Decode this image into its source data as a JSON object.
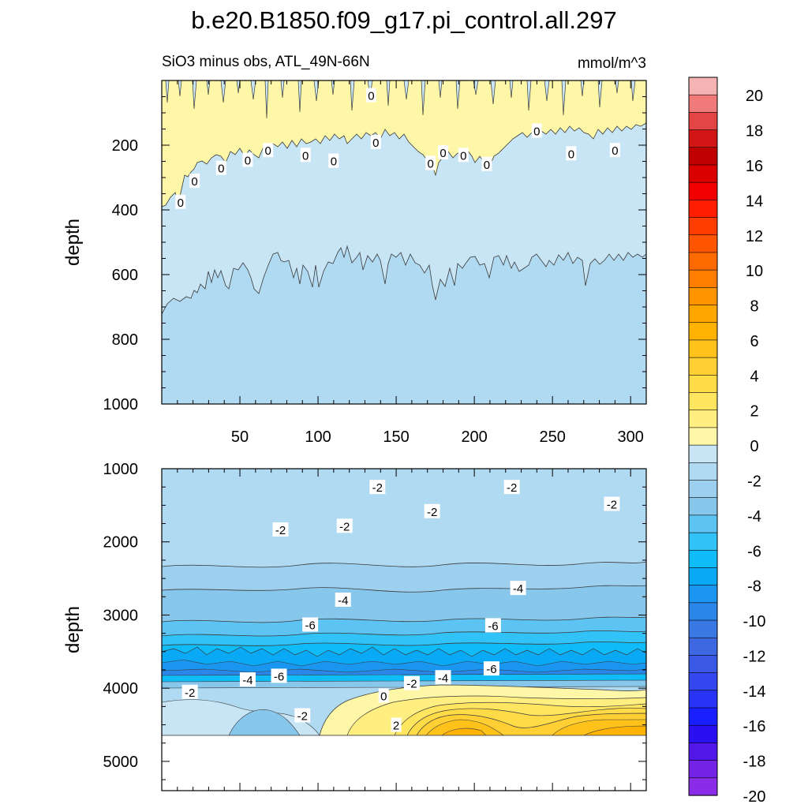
{
  "title": "b.e20.B1850.f09_g17.pi_control.all.297",
  "subtitle_left": "SiO3 minus obs, ATL_49N-66N",
  "subtitle_right": "mmol/m^3",
  "chart_data": [
    {
      "type": "contour",
      "panel": "upper",
      "ylabel": "depth",
      "xlim": [
        0,
        310
      ],
      "ylim": [
        0,
        1000
      ],
      "y_reversed": true,
      "x_ticks": [
        50,
        100,
        150,
        200,
        250,
        300
      ],
      "y_ticks": [
        200,
        400,
        600,
        800,
        1000
      ],
      "contour_labels": [
        {
          "x": 134,
          "y": 45,
          "text": "0"
        },
        {
          "x": 240,
          "y": 155,
          "text": "0"
        },
        {
          "x": 137,
          "y": 190,
          "text": "0"
        },
        {
          "x": 180,
          "y": 222,
          "text": "0"
        },
        {
          "x": 193,
          "y": 230,
          "text": "0"
        },
        {
          "x": 68,
          "y": 215,
          "text": "0"
        },
        {
          "x": 92,
          "y": 230,
          "text": "0"
        },
        {
          "x": 262,
          "y": 225,
          "text": "0"
        },
        {
          "x": 290,
          "y": 215,
          "text": "0"
        },
        {
          "x": 55,
          "y": 245,
          "text": "0"
        },
        {
          "x": 38,
          "y": 270,
          "text": "0"
        },
        {
          "x": 110,
          "y": 248,
          "text": "0"
        },
        {
          "x": 172,
          "y": 255,
          "text": "0"
        },
        {
          "x": 208,
          "y": 258,
          "text": "0"
        },
        {
          "x": 21,
          "y": 310,
          "text": "0"
        },
        {
          "x": 12,
          "y": 375,
          "text": "0"
        }
      ]
    },
    {
      "type": "contour",
      "panel": "lower",
      "ylabel": "depth",
      "xlim": [
        0,
        310
      ],
      "ylim": [
        1000,
        5400
      ],
      "y_reversed": true,
      "y_ticks": [
        1000,
        2000,
        3000,
        4000,
        5000
      ],
      "contour_labels": [
        {
          "x": 138,
          "y": 1250,
          "text": "-2"
        },
        {
          "x": 224,
          "y": 1250,
          "text": "-2"
        },
        {
          "x": 288,
          "y": 1480,
          "text": "-2"
        },
        {
          "x": 173,
          "y": 1580,
          "text": "-2"
        },
        {
          "x": 117,
          "y": 1780,
          "text": "-2"
        },
        {
          "x": 76,
          "y": 1830,
          "text": "-2"
        },
        {
          "x": 228,
          "y": 2630,
          "text": "-4"
        },
        {
          "x": 116,
          "y": 2790,
          "text": "-4"
        },
        {
          "x": 95,
          "y": 3130,
          "text": "-6"
        },
        {
          "x": 212,
          "y": 3140,
          "text": "-6"
        },
        {
          "x": 211,
          "y": 3730,
          "text": "-6"
        },
        {
          "x": 75,
          "y": 3830,
          "text": "-6"
        },
        {
          "x": 55,
          "y": 3880,
          "text": "-4"
        },
        {
          "x": 180,
          "y": 3850,
          "text": "-4"
        },
        {
          "x": 160,
          "y": 3930,
          "text": "-2"
        },
        {
          "x": 18,
          "y": 4050,
          "text": "-2"
        },
        {
          "x": 142,
          "y": 4100,
          "text": "0"
        },
        {
          "x": 90,
          "y": 4370,
          "text": "-2"
        },
        {
          "x": 150,
          "y": 4500,
          "text": "2"
        }
      ]
    }
  ],
  "colorbar": {
    "levels": [
      -20,
      -18,
      -16,
      -14,
      -12,
      -10,
      -8,
      -6,
      -4,
      -2,
      0,
      2,
      4,
      6,
      8,
      10,
      12,
      14,
      16,
      18,
      20
    ],
    "labels": [
      "20",
      "18",
      "16",
      "14",
      "12",
      "10",
      "8",
      "6",
      "4",
      "2",
      "0",
      "-2",
      "-4",
      "-6",
      "-8",
      "-10",
      "-12",
      "-14",
      "-16",
      "-18",
      "-20"
    ],
    "colors": [
      "#f6b3b3",
      "#f07a7a",
      "#e34545",
      "#d21616",
      "#c00000",
      "#da0000",
      "#f20000",
      "#ff1e00",
      "#ff3c00",
      "#ff5500",
      "#ff6a00",
      "#ff7e00",
      "#ff9400",
      "#ffa600",
      "#ffb300",
      "#ffc21a",
      "#ffcf33",
      "#ffdb48",
      "#ffe560",
      "#ffee80",
      "#fff7a8",
      "#c8e5f6",
      "#b0d9f2",
      "#9dd0ef",
      "#88c7ec",
      "#5dc3f2",
      "#31c3f7",
      "#0fbcf7",
      "#0aa9f5",
      "#1a96f0",
      "#2b86ea",
      "#3a78e4",
      "#3d68e2",
      "#3a58e6",
      "#3446ee",
      "#2833f5",
      "#1a1fff",
      "#2a10f0",
      "#5217e8",
      "#7322e6",
      "#8a2be8"
    ]
  }
}
